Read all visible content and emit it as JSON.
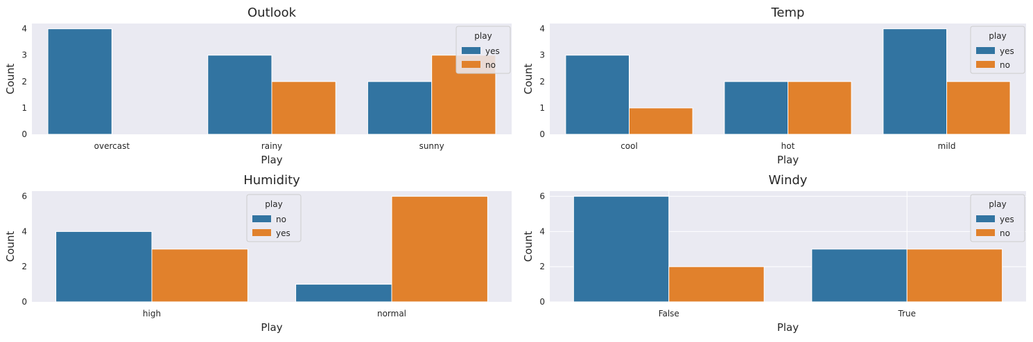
{
  "colors": {
    "blue": "#3274a1",
    "orange": "#e1812c",
    "panel": "#eaeaf2",
    "grid": "#ffffff"
  },
  "chart_data": [
    {
      "type": "bar",
      "title": "Outlook",
      "xlabel": "Play",
      "ylabel": "Count",
      "categories": [
        "overcast",
        "rainy",
        "sunny"
      ],
      "series": [
        {
          "name": "yes",
          "values": [
            4,
            3,
            2
          ]
        },
        {
          "name": "no",
          "values": [
            0,
            2,
            3
          ]
        }
      ],
      "ylim": [
        0,
        4.2
      ],
      "yticks": [
        "0",
        "1",
        "2",
        "3",
        "4"
      ],
      "grid": false,
      "legend": {
        "title": "play",
        "position": "top-right"
      }
    },
    {
      "type": "bar",
      "title": "Temp",
      "xlabel": "Play",
      "ylabel": "Count",
      "categories": [
        "cool",
        "hot",
        "mild"
      ],
      "series": [
        {
          "name": "yes",
          "values": [
            3,
            2,
            4
          ]
        },
        {
          "name": "no",
          "values": [
            1,
            2,
            2
          ]
        }
      ],
      "ylim": [
        0,
        4.2
      ],
      "yticks": [
        "0",
        "1",
        "2",
        "3",
        "4"
      ],
      "grid": false,
      "legend": {
        "title": "play",
        "position": "top-right"
      }
    },
    {
      "type": "bar",
      "title": "Humidity",
      "xlabel": "Play",
      "ylabel": "Count",
      "categories": [
        "high",
        "normal"
      ],
      "series": [
        {
          "name": "no",
          "values": [
            4,
            1
          ]
        },
        {
          "name": "yes",
          "values": [
            3,
            6
          ]
        }
      ],
      "ylim": [
        0,
        6.3
      ],
      "yticks": [
        "0",
        "2",
        "4",
        "6"
      ],
      "grid": false,
      "legend": {
        "title": "play",
        "position": "upper-center"
      }
    },
    {
      "type": "bar",
      "title": "Windy",
      "xlabel": "Play",
      "ylabel": "Count",
      "categories": [
        "False",
        "True"
      ],
      "series": [
        {
          "name": "yes",
          "values": [
            6,
            3
          ]
        },
        {
          "name": "no",
          "values": [
            2,
            3
          ]
        }
      ],
      "ylim": [
        0,
        6.3
      ],
      "yticks": [
        "0",
        "2",
        "4",
        "6"
      ],
      "grid": true,
      "legend": {
        "title": "play",
        "position": "top-right"
      }
    }
  ]
}
